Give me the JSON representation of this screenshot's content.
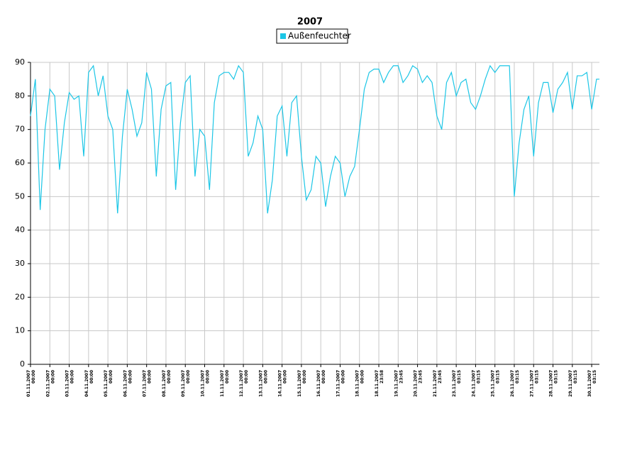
{
  "chart_data": {
    "type": "line",
    "title": "2007",
    "x": [
      0,
      0.25,
      0.5,
      0.75,
      1,
      1.25,
      1.5,
      1.75,
      2,
      2.25,
      2.5,
      2.75,
      3,
      3.25,
      3.5,
      3.75,
      4,
      4.25,
      4.5,
      4.75,
      5,
      5.25,
      5.5,
      5.75,
      6,
      6.25,
      6.5,
      6.75,
      7,
      7.25,
      7.5,
      7.75,
      8,
      8.25,
      8.5,
      8.75,
      9,
      9.25,
      9.5,
      9.75,
      10,
      10.25,
      10.5,
      10.75,
      11,
      11.25,
      11.5,
      11.75,
      12,
      12.25,
      12.5,
      12.75,
      13,
      13.25,
      13.5,
      13.75,
      14,
      14.25,
      14.5,
      14.75,
      15,
      15.25,
      15.5,
      15.75,
      16,
      16.25,
      16.5,
      16.75,
      17,
      17.25,
      17.5,
      17.75,
      18,
      18.25,
      18.5,
      18.75,
      19,
      19.25,
      19.5,
      19.75,
      20,
      20.25,
      20.5,
      20.75,
      21,
      21.25,
      21.5,
      21.75,
      22,
      22.25,
      22.5,
      22.75,
      23,
      23.25,
      23.5,
      23.75,
      24,
      24.25,
      24.5,
      24.75,
      25,
      25.25,
      25.5,
      25.75,
      26,
      26.25,
      26.5,
      26.75,
      27,
      27.25,
      27.5,
      27.75,
      28,
      28.25,
      28.5,
      28.75,
      29,
      29.25,
      29.4
    ],
    "series": [
      {
        "name": "Außenfeuchter",
        "color": "#1cc6e6",
        "values": [
          74,
          85,
          46,
          70,
          82,
          80,
          58,
          72,
          81,
          79,
          80,
          62,
          87,
          89,
          80,
          86,
          74,
          70,
          45,
          68,
          82,
          76,
          68,
          72,
          87,
          82,
          56,
          76,
          83,
          84,
          52,
          72,
          84,
          86,
          56,
          70,
          68,
          52,
          78,
          86,
          87,
          87,
          85,
          89,
          87,
          62,
          66,
          74,
          70,
          45,
          55,
          74,
          77,
          62,
          78,
          80,
          62,
          49,
          52,
          62,
          60,
          47,
          56,
          62,
          60,
          50,
          56,
          59,
          70,
          82,
          87,
          88,
          88,
          84,
          87,
          89,
          89,
          84,
          86,
          89,
          88,
          84,
          86,
          84,
          74,
          70,
          84,
          87,
          80,
          84,
          85,
          78,
          76,
          80,
          85,
          89,
          87,
          89,
          89,
          89,
          50,
          66,
          76,
          80,
          62,
          78,
          84,
          84,
          75,
          82,
          84,
          87,
          76,
          86,
          86,
          87,
          76,
          85,
          85
        ]
      }
    ],
    "xlim": [
      0,
      29.4
    ],
    "xticks": [
      {
        "value": 0,
        "label": "01.11.2007 00:00"
      },
      {
        "value": 1,
        "label": "02.11.2007 00:00"
      },
      {
        "value": 2,
        "label": "03.11.2007 00:00"
      },
      {
        "value": 3,
        "label": "04.11.2007 00:00"
      },
      {
        "value": 4,
        "label": "05.11.2007 00:00"
      },
      {
        "value": 5,
        "label": "06.11.2007 00:00"
      },
      {
        "value": 6,
        "label": "07.11.2007 00:00"
      },
      {
        "value": 7,
        "label": "08.11.2007 00:00"
      },
      {
        "value": 8,
        "label": "09.11.2007 00:00"
      },
      {
        "value": 9,
        "label": "10.11.2007 00:00"
      },
      {
        "value": 10,
        "label": "11.11.2007 00:00"
      },
      {
        "value": 11,
        "label": "12.11.2007 00:00"
      },
      {
        "value": 12,
        "label": "13.11.2007 00:00"
      },
      {
        "value": 13,
        "label": "14.11.2007 00:00"
      },
      {
        "value": 14,
        "label": "15.11.2007 00:00"
      },
      {
        "value": 15,
        "label": "16.11.2007 00:00"
      },
      {
        "value": 16,
        "label": "17.11.2007 00:00"
      },
      {
        "value": 17,
        "label": "18.11.2007 00:00"
      },
      {
        "value": 18,
        "label": "18.11.2007 23:58"
      },
      {
        "value": 19,
        "label": "19.11.2007 23:45"
      },
      {
        "value": 20,
        "label": "20.11.2007 23:45"
      },
      {
        "value": 21,
        "label": "21.11.2007 23:45"
      },
      {
        "value": 22,
        "label": "23.11.2007 03:15"
      },
      {
        "value": 23,
        "label": "24.11.2007 03:15"
      },
      {
        "value": 24,
        "label": "25.11.2007 03:15"
      },
      {
        "value": 25,
        "label": "26.11.2007 03:15"
      },
      {
        "value": 26,
        "label": "27.11.2007 03:15"
      },
      {
        "value": 27,
        "label": "28.11.2007 03:15"
      },
      {
        "value": 28,
        "label": "29.11.2007 03:15"
      },
      {
        "value": 29,
        "label": "30.11.2007 03:15"
      }
    ],
    "ylim": [
      0,
      90
    ],
    "yticks": [
      0,
      10,
      20,
      30,
      40,
      50,
      60,
      70,
      80,
      90
    ],
    "grid": true,
    "legend": "top"
  }
}
